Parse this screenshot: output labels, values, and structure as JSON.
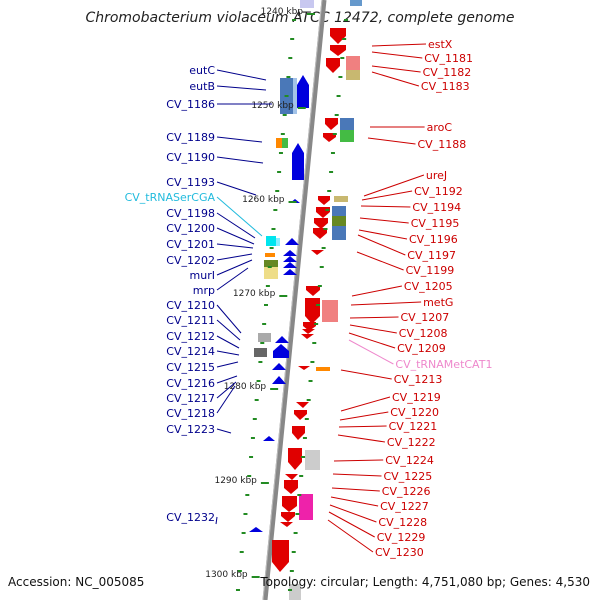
{
  "title": "Chromobacterium violaceum ATCC 12472, complete genome",
  "footer": {
    "accession": "Accession: NC_005085",
    "summary": "Topology: circular; Length: 4,751,080 bp; Genes: 4,530"
  },
  "colors": {
    "forward_arrow": "#e00000",
    "reverse_arrow": "#0000dd",
    "left_label": "#00008b",
    "right_label": "#cc0000",
    "trna_left": "#22bbdd",
    "trna_right": "#ee88cc",
    "backbone": "#808080",
    "tick": "#228b22"
  },
  "ticks": [
    "1240 kbp",
    "1250 kbp",
    "1260 kbp",
    "1270 kbp",
    "1280 kbp",
    "1290 kbp",
    "1300 kbp"
  ],
  "left_labels": [
    {
      "text": "eutC",
      "type": "gene"
    },
    {
      "text": "eutB",
      "type": "gene"
    },
    {
      "text": "CV_1186",
      "type": "gene"
    },
    {
      "text": "CV_1189",
      "type": "gene"
    },
    {
      "text": "CV_1190",
      "type": "gene"
    },
    {
      "text": "CV_1193",
      "type": "gene"
    },
    {
      "text": "CV_tRNASerCGA",
      "type": "trna"
    },
    {
      "text": "CV_1198",
      "type": "gene"
    },
    {
      "text": "CV_1200",
      "type": "gene"
    },
    {
      "text": "CV_1201",
      "type": "gene"
    },
    {
      "text": "CV_1202",
      "type": "gene"
    },
    {
      "text": "murI",
      "type": "gene"
    },
    {
      "text": "mrp",
      "type": "gene"
    },
    {
      "text": "CV_1210",
      "type": "gene"
    },
    {
      "text": "CV_1211",
      "type": "gene"
    },
    {
      "text": "CV_1212",
      "type": "gene"
    },
    {
      "text": "CV_1214",
      "type": "gene"
    },
    {
      "text": "CV_1215",
      "type": "gene"
    },
    {
      "text": "CV_1216",
      "type": "gene"
    },
    {
      "text": "CV_1217",
      "type": "gene"
    },
    {
      "text": "CV_1218",
      "type": "gene"
    },
    {
      "text": "CV_1223",
      "type": "gene"
    },
    {
      "text": "CV_1232",
      "type": "gene"
    }
  ],
  "right_labels": [
    {
      "text": "estX",
      "type": "gene"
    },
    {
      "text": "CV_1181",
      "type": "gene"
    },
    {
      "text": "CV_1182",
      "type": "gene"
    },
    {
      "text": "CV_1183",
      "type": "gene"
    },
    {
      "text": "aroC",
      "type": "gene"
    },
    {
      "text": "CV_1188",
      "type": "gene"
    },
    {
      "text": "ureJ",
      "type": "gene"
    },
    {
      "text": "CV_1192",
      "type": "gene"
    },
    {
      "text": "CV_1194",
      "type": "gene"
    },
    {
      "text": "CV_1195",
      "type": "gene"
    },
    {
      "text": "CV_1196",
      "type": "gene"
    },
    {
      "text": "CV_1197",
      "type": "gene"
    },
    {
      "text": "CV_1199",
      "type": "gene"
    },
    {
      "text": "CV_1205",
      "type": "gene"
    },
    {
      "text": "metG",
      "type": "gene"
    },
    {
      "text": "CV_1207",
      "type": "gene"
    },
    {
      "text": "CV_1208",
      "type": "gene"
    },
    {
      "text": "CV_1209",
      "type": "gene"
    },
    {
      "text": "CV_tRNAMetCAT1",
      "type": "trna"
    },
    {
      "text": "CV_1213",
      "type": "gene"
    },
    {
      "text": "CV_1219",
      "type": "gene"
    },
    {
      "text": "CV_1220",
      "type": "gene"
    },
    {
      "text": "CV_1221",
      "type": "gene"
    },
    {
      "text": "CV_1222",
      "type": "gene"
    },
    {
      "text": "CV_1224",
      "type": "gene"
    },
    {
      "text": "CV_1225",
      "type": "gene"
    },
    {
      "text": "CV_1226",
      "type": "gene"
    },
    {
      "text": "CV_1227",
      "type": "gene"
    },
    {
      "text": "CV_1228",
      "type": "gene"
    },
    {
      "text": "CV_1229",
      "type": "gene"
    },
    {
      "text": "CV_1230",
      "type": "gene"
    }
  ]
}
